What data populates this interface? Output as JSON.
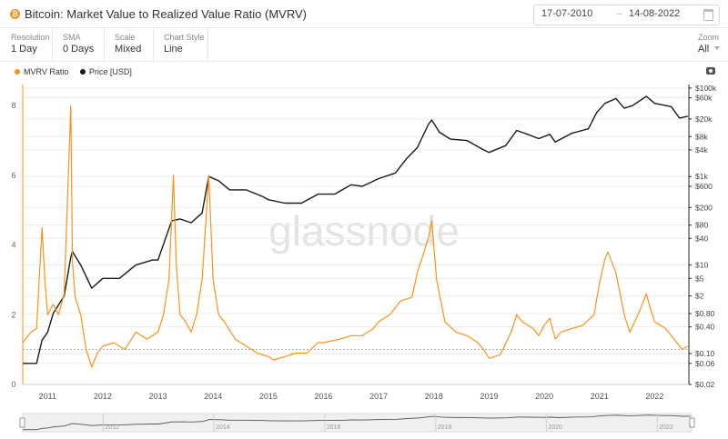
{
  "header": {
    "coin_symbol": "₿",
    "title": "Bitcoin: Market Value to Realized Value Ratio (MVRV)",
    "date_start": "17-07-2010",
    "date_arrow": "→",
    "date_end": "14-08-2022"
  },
  "controls": [
    {
      "label": "Resolution",
      "value": "1 Day"
    },
    {
      "label": "SMA",
      "value": "0 Days"
    },
    {
      "label": "Scale",
      "value": "Mixed"
    },
    {
      "label": "Chart Style",
      "value": "Line"
    }
  ],
  "zoom": {
    "label": "Zoom",
    "value": "All"
  },
  "watermark": "glassnode",
  "colors": {
    "mvrv": "#f7931a",
    "price": "#1a1a1a",
    "grid": "#ececec"
  },
  "chart_data": {
    "type": "line",
    "title": "Bitcoin: Market Value to Realized Value Ratio (MVRV)",
    "x_ticks": [
      "2011",
      "2012",
      "2013",
      "2014",
      "2015",
      "2016",
      "2017",
      "2018",
      "2019",
      "2020",
      "2021",
      "2022"
    ],
    "left_axis": {
      "ticks": [
        "0",
        "2",
        "4",
        "6",
        "8"
      ],
      "ylim": [
        0,
        8.6
      ]
    },
    "right_axis": {
      "scale": "log",
      "ticks": [
        "$0.02",
        "$0.06",
        "$0.10",
        "$0.40",
        "$0.80",
        "$2",
        "$5",
        "$10",
        "$40",
        "$80",
        "$200",
        "$600",
        "$1k",
        "$4k",
        "$8k",
        "$20k",
        "$60k",
        "$100k"
      ],
      "ylim": [
        0.02,
        120000
      ]
    },
    "reference_line": {
      "axis": "left",
      "value": 1
    },
    "legend": [
      "MVRV Ratio",
      "Price [USD]"
    ],
    "series": [
      {
        "name": "MVRV Ratio",
        "axis": "left",
        "x": [
          2010.55,
          2010.7,
          2010.8,
          2010.9,
          2010.95,
          2011.0,
          2011.1,
          2011.2,
          2011.3,
          2011.35,
          2011.42,
          2011.45,
          2011.5,
          2011.6,
          2011.7,
          2011.8,
          2011.9,
          2012.0,
          2012.2,
          2012.4,
          2012.6,
          2012.8,
          2013.0,
          2013.1,
          2013.2,
          2013.28,
          2013.33,
          2013.4,
          2013.5,
          2013.6,
          2013.7,
          2013.8,
          2013.88,
          2013.92,
          2014.0,
          2014.1,
          2014.2,
          2014.4,
          2014.6,
          2014.8,
          2015.0,
          2015.1,
          2015.3,
          2015.5,
          2015.7,
          2015.9,
          2016.0,
          2016.3,
          2016.5,
          2016.7,
          2016.9,
          2017.0,
          2017.2,
          2017.4,
          2017.6,
          2017.7,
          2017.8,
          2017.9,
          2017.96,
          2018.05,
          2018.2,
          2018.4,
          2018.6,
          2018.8,
          2018.9,
          2019.0,
          2019.2,
          2019.4,
          2019.5,
          2019.6,
          2019.8,
          2019.9,
          2020.0,
          2020.1,
          2020.2,
          2020.3,
          2020.5,
          2020.7,
          2020.9,
          2021.0,
          2021.1,
          2021.15,
          2021.3,
          2021.45,
          2021.55,
          2021.7,
          2021.85,
          2021.9,
          2022.0,
          2022.2,
          2022.4,
          2022.5,
          2022.6
        ],
        "values": [
          1.2,
          1.5,
          1.6,
          4.5,
          3.0,
          2.0,
          2.3,
          2.0,
          2.6,
          4.8,
          8.0,
          3.5,
          2.5,
          2.0,
          1.0,
          0.5,
          0.9,
          1.1,
          1.2,
          1.0,
          1.5,
          1.3,
          1.5,
          2.0,
          3.0,
          6.0,
          3.5,
          2.0,
          1.8,
          1.5,
          2.0,
          3.0,
          5.0,
          6.0,
          3.0,
          2.0,
          1.8,
          1.3,
          1.1,
          0.9,
          0.8,
          0.7,
          0.8,
          0.9,
          0.9,
          1.2,
          1.2,
          1.3,
          1.4,
          1.4,
          1.6,
          1.8,
          2.0,
          2.4,
          2.5,
          3.2,
          3.7,
          4.2,
          4.7,
          3.0,
          1.8,
          1.5,
          1.4,
          1.2,
          1.0,
          0.75,
          0.85,
          1.5,
          2.0,
          1.8,
          1.6,
          1.4,
          1.7,
          1.9,
          1.3,
          1.5,
          1.6,
          1.7,
          2.0,
          2.9,
          3.6,
          3.8,
          3.2,
          2.0,
          1.5,
          2.0,
          2.6,
          2.3,
          1.8,
          1.6,
          1.2,
          1.0,
          1.1
        ]
      },
      {
        "name": "Price [USD]",
        "axis": "right",
        "x": [
          2010.55,
          2010.8,
          2010.9,
          2011.0,
          2011.1,
          2011.3,
          2011.42,
          2011.45,
          2011.6,
          2011.8,
          2012.0,
          2012.3,
          2012.6,
          2012.9,
          2013.0,
          2013.25,
          2013.4,
          2013.6,
          2013.8,
          2013.92,
          2014.1,
          2014.3,
          2014.6,
          2014.9,
          2015.0,
          2015.3,
          2015.6,
          2015.9,
          2016.2,
          2016.5,
          2016.7,
          2017.0,
          2017.3,
          2017.5,
          2017.7,
          2017.9,
          2017.96,
          2018.1,
          2018.3,
          2018.6,
          2018.9,
          2019.0,
          2019.3,
          2019.5,
          2019.7,
          2019.9,
          2020.1,
          2020.2,
          2020.5,
          2020.8,
          2020.95,
          2021.1,
          2021.3,
          2021.45,
          2021.6,
          2021.85,
          2022.0,
          2022.3,
          2022.45,
          2022.6
        ],
        "values": [
          0.06,
          0.06,
          0.2,
          0.3,
          0.8,
          2,
          15,
          20,
          10,
          3,
          5,
          5,
          10,
          13,
          13,
          100,
          110,
          90,
          150,
          1000,
          800,
          500,
          500,
          350,
          300,
          250,
          250,
          400,
          400,
          650,
          600,
          900,
          1200,
          2500,
          4500,
          15000,
          19000,
          10000,
          7000,
          6500,
          4000,
          3500,
          5000,
          11000,
          9000,
          7200,
          9000,
          6000,
          9500,
          12000,
          28000,
          45000,
          58000,
          35000,
          40000,
          65000,
          45000,
          38000,
          21000,
          23000
        ]
      }
    ]
  },
  "navigator": {
    "ticks": [
      "2012",
      "2014",
      "2016",
      "2018",
      "2020",
      "2022"
    ]
  }
}
